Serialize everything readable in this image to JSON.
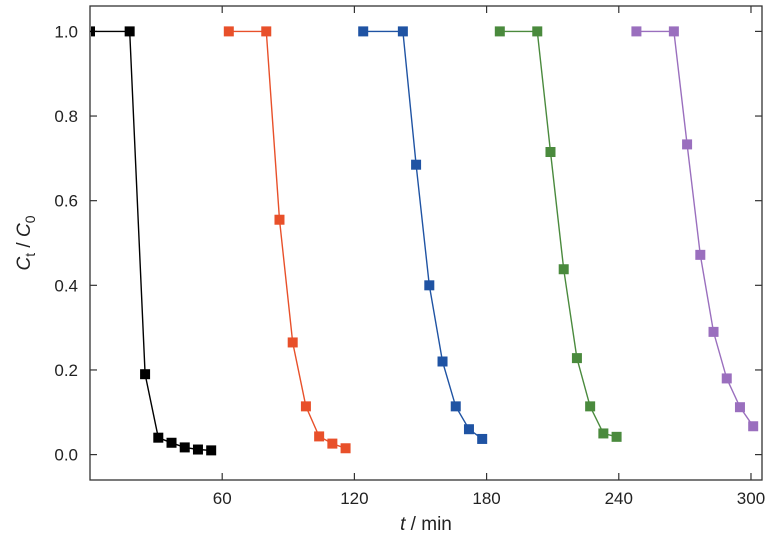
{
  "chart_data": {
    "type": "line",
    "xlabel": {
      "var": "t",
      "sep": " / ",
      "unit": "min"
    },
    "ylabel": {
      "var": "C",
      "sub_num": "t",
      "sep": " / ",
      "var2": "C",
      "sub_den": "0"
    },
    "xlim": [
      0,
      305
    ],
    "ylim": [
      -0.06,
      1.06
    ],
    "xticks": [
      60,
      120,
      180,
      240,
      300
    ],
    "xtick_labels": [
      "60",
      "120",
      "180",
      "240",
      "300"
    ],
    "yticks": [
      0.0,
      0.2,
      0.4,
      0.6,
      0.8,
      1.0
    ],
    "ytick_labels": [
      "0.0",
      "0.2",
      "0.4",
      "0.6",
      "0.8",
      "1.0"
    ],
    "grid": false,
    "legend": "none",
    "series": [
      {
        "color": "#000000",
        "x": [
          0,
          18,
          25,
          31,
          37,
          43,
          49,
          55
        ],
        "y": [
          1.0,
          1.0,
          0.19,
          0.04,
          0.028,
          0.017,
          0.012,
          0.01
        ]
      },
      {
        "color": "#e8502a",
        "x": [
          63,
          80,
          86,
          92,
          98,
          104,
          110,
          116
        ],
        "y": [
          1.0,
          1.0,
          0.555,
          0.265,
          0.114,
          0.043,
          0.026,
          0.015
        ]
      },
      {
        "color": "#1f53a3",
        "x": [
          124,
          142,
          148,
          154,
          160,
          166,
          172,
          178
        ],
        "y": [
          1.0,
          1.0,
          0.685,
          0.4,
          0.22,
          0.114,
          0.06,
          0.037
        ]
      },
      {
        "color": "#4a8a3d",
        "x": [
          186,
          203,
          209,
          215,
          221,
          227,
          233,
          239
        ],
        "y": [
          1.0,
          1.0,
          0.715,
          0.438,
          0.228,
          0.114,
          0.05,
          0.042
        ]
      },
      {
        "color": "#9a6fbe",
        "x": [
          248,
          265,
          271,
          277,
          283,
          289,
          295,
          301
        ],
        "y": [
          1.0,
          1.0,
          0.733,
          0.472,
          0.29,
          0.18,
          0.112,
          0.067
        ]
      }
    ]
  }
}
